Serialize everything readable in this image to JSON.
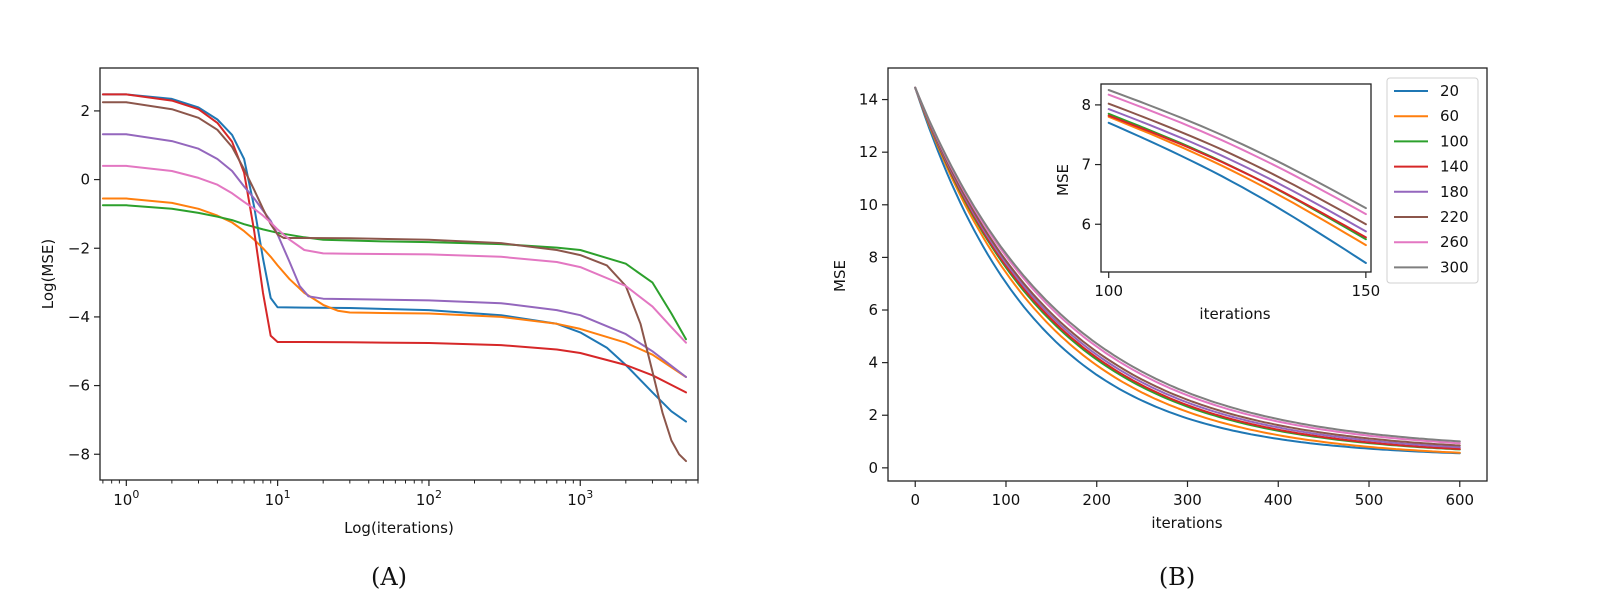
{
  "chart_data": [
    {
      "id": "A",
      "type": "line",
      "panel_label": "(A)",
      "title": "",
      "xlabel": "Log(iterations)",
      "ylabel": "Log(MSE)",
      "xscale": "log",
      "xlim": [
        0.67,
        6000
      ],
      "ylim": [
        -8.75,
        3.25
      ],
      "xticks": [
        1,
        10,
        100,
        1000
      ],
      "xtick_labels": [
        "10^0",
        "10^1",
        "10^2",
        "10^3"
      ],
      "yticks": [
        2,
        0,
        -2,
        -4,
        -6,
        -8
      ],
      "ytick_labels": [
        "2",
        "0",
        "−2",
        "−4",
        "−6",
        "−8"
      ],
      "grid": false,
      "legend": null,
      "series": [
        {
          "name": "20",
          "color": "#1f77b4",
          "x": [
            0.7,
            1,
            2,
            3,
            4,
            5,
            6,
            7,
            8,
            9,
            10,
            15,
            30,
            100,
            300,
            700,
            1000,
            1500,
            2000,
            3000,
            4000,
            5000
          ],
          "values": [
            2.48,
            2.48,
            2.35,
            2.1,
            1.75,
            1.3,
            0.6,
            -0.8,
            -2.3,
            -3.45,
            -3.72,
            -3.73,
            -3.74,
            -3.8,
            -3.95,
            -4.2,
            -4.45,
            -4.9,
            -5.4,
            -6.2,
            -6.75,
            -7.05
          ]
        },
        {
          "name": "60",
          "color": "#ff7f0e",
          "x": [
            0.7,
            1,
            2,
            3,
            4,
            5,
            6,
            7,
            8,
            9,
            10,
            12,
            15,
            20,
            25,
            30,
            40,
            100,
            300,
            700,
            1000,
            2000,
            3000,
            5000
          ],
          "values": [
            -0.55,
            -0.55,
            -0.68,
            -0.85,
            -1.05,
            -1.25,
            -1.5,
            -1.75,
            -2.0,
            -2.25,
            -2.5,
            -2.9,
            -3.3,
            -3.65,
            -3.82,
            -3.87,
            -3.88,
            -3.9,
            -4.0,
            -4.2,
            -4.35,
            -4.75,
            -5.1,
            -5.75
          ]
        },
        {
          "name": "100",
          "color": "#2ca02c",
          "x": [
            0.7,
            1,
            2,
            3,
            4,
            5,
            6,
            8,
            10,
            15,
            20,
            50,
            100,
            300,
            700,
            1000,
            2000,
            3000,
            4000,
            5000
          ],
          "values": [
            -0.75,
            -0.75,
            -0.85,
            -0.97,
            -1.08,
            -1.18,
            -1.3,
            -1.45,
            -1.55,
            -1.68,
            -1.75,
            -1.8,
            -1.82,
            -1.88,
            -1.98,
            -2.05,
            -2.45,
            -3.0,
            -3.9,
            -4.65
          ]
        },
        {
          "name": "140",
          "color": "#d62728",
          "x": [
            0.7,
            1,
            2,
            3,
            4,
            5,
            6,
            7,
            8,
            9,
            10,
            15,
            30,
            100,
            300,
            700,
            1000,
            2000,
            3000,
            5000
          ],
          "values": [
            2.48,
            2.48,
            2.3,
            2.05,
            1.65,
            1.1,
            0.2,
            -1.5,
            -3.3,
            -4.55,
            -4.73,
            -4.73,
            -4.74,
            -4.76,
            -4.82,
            -4.95,
            -5.05,
            -5.4,
            -5.7,
            -6.2
          ]
        },
        {
          "name": "180",
          "color": "#9467bd",
          "x": [
            0.7,
            1,
            2,
            3,
            4,
            5,
            6,
            7,
            8,
            9,
            10,
            12,
            14,
            16,
            20,
            30,
            100,
            300,
            700,
            1000,
            2000,
            3000,
            5000
          ],
          "values": [
            1.32,
            1.32,
            1.12,
            0.9,
            0.6,
            0.25,
            -0.2,
            -0.55,
            -0.9,
            -1.2,
            -1.6,
            -2.4,
            -3.1,
            -3.4,
            -3.47,
            -3.48,
            -3.52,
            -3.6,
            -3.8,
            -3.95,
            -4.5,
            -5.0,
            -5.75
          ]
        },
        {
          "name": "220",
          "color": "#8c564b",
          "x": [
            0.7,
            1,
            2,
            3,
            4,
            5,
            6,
            7,
            8,
            9,
            10,
            11,
            15,
            30,
            100,
            300,
            700,
            1000,
            1500,
            2000,
            2500,
            3000,
            3500,
            4000,
            4500,
            5000
          ],
          "values": [
            2.25,
            2.25,
            2.05,
            1.8,
            1.45,
            0.95,
            0.3,
            -0.3,
            -0.85,
            -1.3,
            -1.6,
            -1.7,
            -1.7,
            -1.71,
            -1.75,
            -1.85,
            -2.05,
            -2.2,
            -2.5,
            -3.1,
            -4.2,
            -5.6,
            -6.8,
            -7.6,
            -8.0,
            -8.2
          ]
        },
        {
          "name": "260",
          "color": "#e377c2",
          "x": [
            0.7,
            1,
            2,
            3,
            4,
            5,
            6,
            7,
            8,
            9,
            10,
            12,
            15,
            20,
            30,
            100,
            300,
            700,
            1000,
            2000,
            3000,
            4000,
            5000
          ],
          "values": [
            0.4,
            0.4,
            0.25,
            0.05,
            -0.15,
            -0.4,
            -0.65,
            -0.85,
            -1.05,
            -1.25,
            -1.45,
            -1.75,
            -2.05,
            -2.15,
            -2.16,
            -2.18,
            -2.25,
            -2.4,
            -2.55,
            -3.1,
            -3.7,
            -4.3,
            -4.75
          ]
        }
      ]
    },
    {
      "id": "B",
      "type": "line",
      "panel_label": "(B)",
      "title": "",
      "xlabel": "iterations",
      "ylabel": "MSE",
      "xlim": [
        -30,
        630
      ],
      "ylim": [
        -0.5,
        15.2
      ],
      "xticks": [
        0,
        100,
        200,
        300,
        400,
        500,
        600
      ],
      "xtick_labels": [
        "0",
        "100",
        "200",
        "300",
        "400",
        "500",
        "600"
      ],
      "yticks": [
        0,
        2,
        4,
        6,
        8,
        10,
        12,
        14
      ],
      "ytick_labels": [
        "0",
        "2",
        "4",
        "6",
        "8",
        "10",
        "12",
        "14"
      ],
      "grid": false,
      "legend": {
        "position": "upper right",
        "entries": [
          "20",
          "60",
          "100",
          "140",
          "180",
          "220",
          "260",
          "300"
        ]
      },
      "series": [
        {
          "name": "20",
          "color": "#1f77b4",
          "start": 14.45,
          "end": 0.4,
          "decay": 0.0075
        },
        {
          "name": "60",
          "color": "#ff7f0e",
          "start": 14.45,
          "end": 0.35,
          "decay": 0.0069
        },
        {
          "name": "100",
          "color": "#2ca02c",
          "start": 14.45,
          "end": 0.45,
          "decay": 0.0067
        },
        {
          "name": "140",
          "color": "#d62728",
          "start": 14.45,
          "end": 0.45,
          "decay": 0.0066
        },
        {
          "name": "180",
          "color": "#9467bd",
          "start": 14.45,
          "end": 0.5,
          "decay": 0.0065
        },
        {
          "name": "220",
          "color": "#8c564b",
          "start": 14.45,
          "end": 0.55,
          "decay": 0.0064
        },
        {
          "name": "260",
          "color": "#e377c2",
          "start": 14.45,
          "end": 0.6,
          "decay": 0.0062
        },
        {
          "name": "300",
          "color": "#7f7f7f",
          "start": 14.45,
          "end": 0.65,
          "decay": 0.0061
        }
      ],
      "inset": {
        "xlabel": "iterations",
        "ylabel": "MSE",
        "xlim": [
          98.5,
          151
        ],
        "ylim": [
          5.2,
          8.35
        ],
        "xticks": [
          100,
          150
        ],
        "xtick_labels": [
          "100",
          "150"
        ],
        "yticks": [
          6,
          7,
          8
        ],
        "ytick_labels": [
          "6",
          "7",
          "8"
        ],
        "series": [
          {
            "name": "20",
            "color": "#1f77b4",
            "values_at_100": 7.7,
            "values_at_150": 5.35
          },
          {
            "name": "60",
            "color": "#ff7f0e",
            "values_at_100": 7.8,
            "values_at_150": 5.65
          },
          {
            "name": "100",
            "color": "#2ca02c",
            "values_at_100": 7.85,
            "values_at_150": 5.75
          },
          {
            "name": "140",
            "color": "#d62728",
            "values_at_100": 7.82,
            "values_at_150": 5.78
          },
          {
            "name": "180",
            "color": "#9467bd",
            "values_at_100": 7.93,
            "values_at_150": 5.88
          },
          {
            "name": "220",
            "color": "#8c564b",
            "values_at_100": 8.02,
            "values_at_150": 6.0
          },
          {
            "name": "260",
            "color": "#e377c2",
            "values_at_100": 8.17,
            "values_at_150": 6.17
          },
          {
            "name": "300",
            "color": "#7f7f7f",
            "values_at_100": 8.25,
            "values_at_150": 6.27
          }
        ]
      }
    }
  ]
}
